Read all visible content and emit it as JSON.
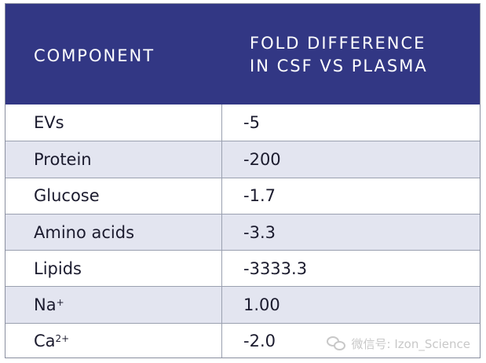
{
  "table": {
    "headers": {
      "component": "COMPONENT",
      "fold_line1": "FOLD DIFFERENCE",
      "fold_line2": "IN CSF VS PLASMA"
    },
    "rows": [
      {
        "name": "EVs",
        "sup": "",
        "value": "-5"
      },
      {
        "name": "Protein",
        "sup": "",
        "value": "-200"
      },
      {
        "name": "Glucose",
        "sup": "",
        "value": "-1.7"
      },
      {
        "name": "Amino acids",
        "sup": "",
        "value": "-3.3"
      },
      {
        "name": "Lipids",
        "sup": "",
        "value": "-3333.3"
      },
      {
        "name": "Na",
        "sup": "+",
        "value": "1.00"
      },
      {
        "name": "Ca",
        "sup": "2+",
        "value": "-2.0"
      }
    ]
  },
  "watermark": {
    "text": "微信号: Izon_Science",
    "icon": "wechat-icon"
  },
  "colors": {
    "header_bg": "#323784",
    "alt_row_bg": "#e3e5f0"
  }
}
